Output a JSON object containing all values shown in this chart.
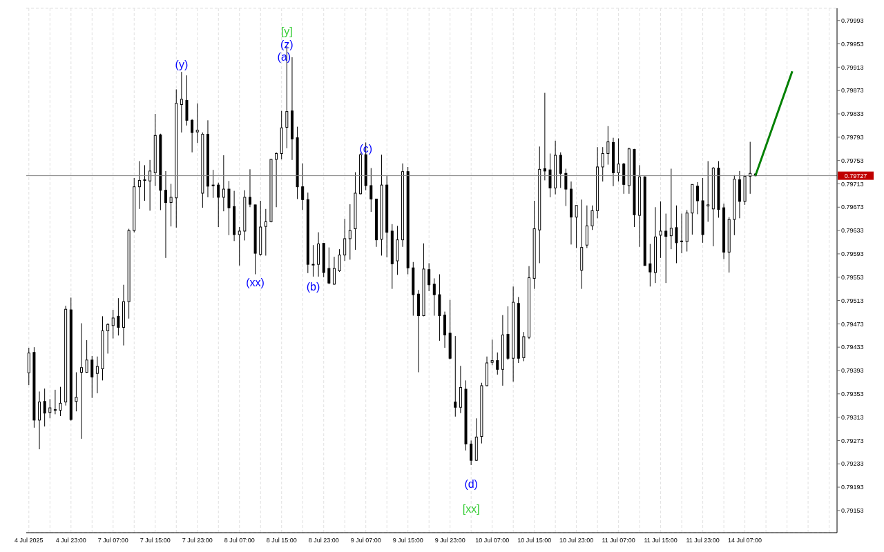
{
  "chart_data": {
    "type": "candlestick",
    "categories": [
      "4 Jul 2025",
      null,
      null,
      null,
      null,
      null,
      null,
      null,
      "4 Jul 23:00",
      null,
      null,
      null,
      null,
      null,
      null,
      null,
      "7 Jul 07:00",
      null,
      null,
      null,
      null,
      null,
      null,
      null,
      "7 Jul 15:00",
      null,
      null,
      null,
      null,
      null,
      null,
      null,
      "7 Jul 23:00",
      null,
      null,
      null,
      null,
      null,
      null,
      null,
      "8 Jul 07:00",
      null,
      null,
      null,
      null,
      null,
      null,
      null,
      "8 Jul 15:00",
      null,
      null,
      null,
      null,
      null,
      null,
      null,
      "8 Jul 23:00",
      null,
      null,
      null,
      null,
      null,
      null,
      null,
      "9 Jul 07:00",
      null,
      null,
      null,
      null,
      null,
      null,
      null,
      "9 Jul 15:00",
      null,
      null,
      null,
      null,
      null,
      null,
      null,
      "9 Jul 23:00",
      null,
      null,
      null,
      null,
      null,
      null,
      null,
      "10 Jul 07:00",
      null,
      null,
      null,
      null,
      null,
      null,
      null,
      "10 Jul 15:00",
      null,
      null,
      null,
      null,
      null,
      null,
      null,
      "10 Jul 23:00",
      null,
      null,
      null,
      null,
      null,
      null,
      null,
      "11 Jul 07:00",
      null,
      null,
      null,
      null,
      null,
      null,
      null,
      "11 Jul 15:00",
      null,
      null,
      null,
      null,
      null,
      null,
      null,
      "11 Jul 23:00",
      null,
      null,
      null,
      null,
      null,
      null,
      null,
      "14 Jul 07:00",
      null,
      null,
      null,
      null,
      null,
      null,
      null,
      null,
      null,
      null,
      null,
      null,
      null,
      null,
      null,
      null,
      null
    ],
    "ohlc": [
      [
        0.79389,
        0.79432,
        0.79368,
        0.79423
      ],
      [
        0.79424,
        0.79433,
        0.79295,
        0.79308
      ],
      [
        0.79308,
        0.79357,
        0.79258,
        0.79339
      ],
      [
        0.7934,
        0.79362,
        0.79297,
        0.7932
      ],
      [
        0.79321,
        0.79344,
        0.79311,
        0.79329
      ],
      [
        0.79326,
        0.7936,
        0.79318,
        0.79325
      ],
      [
        0.79325,
        0.79365,
        0.79315,
        0.79337
      ],
      [
        0.79339,
        0.79504,
        0.79333,
        0.79498
      ],
      [
        0.79497,
        0.79518,
        0.79307,
        0.79309
      ],
      [
        0.7934,
        0.7939,
        0.79323,
        0.79347
      ],
      [
        0.7939,
        0.79474,
        0.79276,
        0.79398
      ],
      [
        0.7939,
        0.79445,
        0.79389,
        0.79411
      ],
      [
        0.79411,
        0.79418,
        0.79346,
        0.79382
      ],
      [
        0.79388,
        0.79417,
        0.79354,
        0.794
      ],
      [
        0.79396,
        0.79486,
        0.79376,
        0.79461
      ],
      [
        0.79461,
        0.79474,
        0.79422,
        0.79472
      ],
      [
        0.7947,
        0.79497,
        0.79448,
        0.79483
      ],
      [
        0.79486,
        0.79517,
        0.79453,
        0.79467
      ],
      [
        0.79467,
        0.7954,
        0.79436,
        0.79511
      ],
      [
        0.79511,
        0.79636,
        0.79482,
        0.79633
      ],
      [
        0.79633,
        0.79723,
        0.7963,
        0.79708
      ],
      [
        0.79708,
        0.79752,
        0.7967,
        0.79719
      ],
      [
        0.79719,
        0.79745,
        0.79684,
        0.7972
      ],
      [
        0.79718,
        0.79754,
        0.79667,
        0.79735
      ],
      [
        0.79732,
        0.79833,
        0.79709,
        0.79796
      ],
      [
        0.79797,
        0.79799,
        0.79668,
        0.79702
      ],
      [
        0.79702,
        0.79735,
        0.79586,
        0.79681
      ],
      [
        0.79681,
        0.79713,
        0.7964,
        0.7969
      ],
      [
        0.79689,
        0.79875,
        0.79638,
        0.79851
      ],
      [
        0.79849,
        0.79905,
        0.79801,
        0.79858
      ],
      [
        0.79856,
        0.79899,
        0.79813,
        0.79822
      ],
      [
        0.79822,
        0.79824,
        0.79767,
        0.79801
      ],
      [
        0.79802,
        0.79851,
        0.79783,
        0.79805
      ],
      [
        0.79697,
        0.79801,
        0.79672,
        0.79798
      ],
      [
        0.79798,
        0.79822,
        0.7969,
        0.79709
      ],
      [
        0.79711,
        0.79737,
        0.79689,
        0.7971
      ],
      [
        0.79711,
        0.79715,
        0.79639,
        0.7969
      ],
      [
        0.7969,
        0.79762,
        0.79666,
        0.79704
      ],
      [
        0.79704,
        0.79718,
        0.79625,
        0.79672
      ],
      [
        0.79674,
        0.79701,
        0.79615,
        0.79626
      ],
      [
        0.79626,
        0.79639,
        0.79573,
        0.79632
      ],
      [
        0.79632,
        0.79702,
        0.79616,
        0.7969
      ],
      [
        0.7969,
        0.79738,
        0.79673,
        0.79678
      ],
      [
        0.79677,
        0.79677,
        0.79558,
        0.79594
      ],
      [
        0.79592,
        0.79684,
        0.7959,
        0.79639
      ],
      [
        0.7964,
        0.7967,
        0.7959,
        0.79648
      ],
      [
        0.79648,
        0.79756,
        0.79647,
        0.79755
      ],
      [
        0.79755,
        0.79767,
        0.79673,
        0.79765
      ],
      [
        0.79765,
        0.79838,
        0.79755,
        0.79809
      ],
      [
        0.7981,
        0.79949,
        0.79774,
        0.79837
      ],
      [
        0.79838,
        0.7993,
        0.79754,
        0.7979
      ],
      [
        0.79792,
        0.79811,
        0.79687,
        0.79708
      ],
      [
        0.79708,
        0.79748,
        0.79668,
        0.79686
      ],
      [
        0.79686,
        0.79698,
        0.7956,
        0.79575
      ],
      [
        0.79574,
        0.79608,
        0.79554,
        0.79575
      ],
      [
        0.79575,
        0.7963,
        0.79554,
        0.7961
      ],
      [
        0.79611,
        0.79611,
        0.79553,
        0.79561
      ],
      [
        0.79568,
        0.79604,
        0.79541,
        0.79543
      ],
      [
        0.79541,
        0.79588,
        0.7954,
        0.79568
      ],
      [
        0.79564,
        0.79601,
        0.79562,
        0.79591
      ],
      [
        0.79591,
        0.79653,
        0.79581,
        0.79619
      ],
      [
        0.79619,
        0.79678,
        0.79583,
        0.79633
      ],
      [
        0.79636,
        0.79733,
        0.796,
        0.79697
      ],
      [
        0.79696,
        0.79766,
        0.79695,
        0.79763
      ],
      [
        0.79763,
        0.79784,
        0.79702,
        0.7971
      ],
      [
        0.7971,
        0.7974,
        0.79665,
        0.79687
      ],
      [
        0.79687,
        0.79687,
        0.79605,
        0.79617
      ],
      [
        0.79618,
        0.79763,
        0.7959,
        0.79711
      ],
      [
        0.79711,
        0.79727,
        0.79587,
        0.7963
      ],
      [
        0.79632,
        0.79644,
        0.79533,
        0.79576
      ],
      [
        0.79581,
        0.79641,
        0.79557,
        0.79617
      ],
      [
        0.79617,
        0.79748,
        0.79605,
        0.79734
      ],
      [
        0.79734,
        0.79742,
        0.79558,
        0.79569
      ],
      [
        0.79569,
        0.79579,
        0.79487,
        0.79523
      ],
      [
        0.79524,
        0.79531,
        0.7939,
        0.79487
      ],
      [
        0.79487,
        0.79611,
        0.79486,
        0.79567
      ],
      [
        0.79566,
        0.79577,
        0.79529,
        0.7954
      ],
      [
        0.79541,
        0.79551,
        0.79487,
        0.79523
      ],
      [
        0.79523,
        0.79558,
        0.79444,
        0.79487
      ],
      [
        0.79488,
        0.79494,
        0.79432,
        0.79454
      ],
      [
        0.79457,
        0.79514,
        0.79412,
        0.79414
      ],
      [
        0.79339,
        0.79452,
        0.79314,
        0.7933
      ],
      [
        0.7933,
        0.79401,
        0.7932,
        0.79364
      ],
      [
        0.79361,
        0.79376,
        0.79256,
        0.79267
      ],
      [
        0.79267,
        0.79273,
        0.79231,
        0.79239
      ],
      [
        0.79239,
        0.79311,
        0.79238,
        0.79279
      ],
      [
        0.7928,
        0.79372,
        0.79268,
        0.79367
      ],
      [
        0.79367,
        0.79417,
        0.79366,
        0.79406
      ],
      [
        0.79407,
        0.79446,
        0.79402,
        0.7941
      ],
      [
        0.7941,
        0.79424,
        0.79386,
        0.79395
      ],
      [
        0.79395,
        0.79488,
        0.79367,
        0.79454
      ],
      [
        0.79455,
        0.79503,
        0.79411,
        0.79414
      ],
      [
        0.79414,
        0.79537,
        0.79374,
        0.7951
      ],
      [
        0.79508,
        0.79519,
        0.79406,
        0.79414
      ],
      [
        0.79415,
        0.79459,
        0.79409,
        0.79451
      ],
      [
        0.7945,
        0.79572,
        0.79447,
        0.79552
      ],
      [
        0.79551,
        0.79684,
        0.79533,
        0.79636
      ],
      [
        0.79634,
        0.79777,
        0.79577,
        0.79738
      ],
      [
        0.79739,
        0.79869,
        0.79719,
        0.79735
      ],
      [
        0.79737,
        0.79765,
        0.7969,
        0.79706
      ],
      [
        0.79706,
        0.79787,
        0.79695,
        0.79762
      ],
      [
        0.79762,
        0.79767,
        0.79706,
        0.79731
      ],
      [
        0.79731,
        0.79739,
        0.79675,
        0.79704
      ],
      [
        0.79704,
        0.79717,
        0.79609,
        0.79656
      ],
      [
        0.79656,
        0.79676,
        0.79603,
        0.79676
      ],
      [
        0.79565,
        0.79686,
        0.79533,
        0.79604
      ],
      [
        0.79608,
        0.79676,
        0.79603,
        0.79641
      ],
      [
        0.79641,
        0.79676,
        0.79634,
        0.79667
      ],
      [
        0.79667,
        0.79776,
        0.79654,
        0.79742
      ],
      [
        0.79742,
        0.79776,
        0.79717,
        0.79765
      ],
      [
        0.79765,
        0.79812,
        0.79746,
        0.79785
      ],
      [
        0.79784,
        0.79792,
        0.79709,
        0.79732
      ],
      [
        0.79732,
        0.79791,
        0.79717,
        0.79747
      ],
      [
        0.79747,
        0.79749,
        0.79696,
        0.79712
      ],
      [
        0.7971,
        0.79775,
        0.79696,
        0.79773
      ],
      [
        0.79772,
        0.79773,
        0.79639,
        0.7966
      ],
      [
        0.79659,
        0.79745,
        0.79605,
        0.79725
      ],
      [
        0.79725,
        0.79726,
        0.79573,
        0.79573
      ],
      [
        0.79576,
        0.7961,
        0.79537,
        0.79562
      ],
      [
        0.79561,
        0.79673,
        0.79543,
        0.79622
      ],
      [
        0.79625,
        0.79683,
        0.79586,
        0.79632
      ],
      [
        0.79632,
        0.79662,
        0.79543,
        0.79623
      ],
      [
        0.79624,
        0.79739,
        0.79601,
        0.79637
      ],
      [
        0.79638,
        0.79676,
        0.79577,
        0.79612
      ],
      [
        0.79614,
        0.79662,
        0.79594,
        0.79615
      ],
      [
        0.79614,
        0.79668,
        0.79597,
        0.79663
      ],
      [
        0.79663,
        0.79712,
        0.79626,
        0.79712
      ],
      [
        0.79709,
        0.79716,
        0.79661,
        0.79684
      ],
      [
        0.79684,
        0.79723,
        0.79612,
        0.79626
      ],
      [
        0.79675,
        0.79752,
        0.79648,
        0.79677
      ],
      [
        0.7967,
        0.79742,
        0.79606,
        0.7974
      ],
      [
        0.7974,
        0.79752,
        0.79655,
        0.79669
      ],
      [
        0.79672,
        0.79679,
        0.79584,
        0.79596
      ],
      [
        0.79596,
        0.79656,
        0.79561,
        0.79652
      ],
      [
        0.79652,
        0.79728,
        0.79625,
        0.79721
      ],
      [
        0.7972,
        0.79735,
        0.79654,
        0.79683
      ],
      [
        0.79683,
        0.79728,
        0.79677,
        0.79726
      ],
      [
        0.79726,
        0.79785,
        0.79696,
        0.79731
      ],
      [
        0.7973,
        0.79731,
        0.79726,
        0.79727
      ],
      null,
      null,
      null,
      null,
      null,
      null,
      null,
      null,
      null,
      null,
      null,
      null,
      null,
      null,
      null
    ],
    "series": [
      {
        "type": "line",
        "color": "#008000",
        "values": [
          null,
          null,
          null,
          null,
          null,
          null,
          null,
          null,
          null,
          null,
          null,
          null,
          null,
          null,
          null,
          null,
          null,
          null,
          null,
          null,
          null,
          null,
          null,
          null,
          null,
          null,
          null,
          null,
          null,
          null,
          null,
          null,
          null,
          null,
          null,
          null,
          null,
          null,
          null,
          null,
          null,
          null,
          null,
          null,
          null,
          null,
          null,
          null,
          null,
          null,
          null,
          null,
          null,
          null,
          null,
          null,
          null,
          null,
          null,
          null,
          null,
          null,
          null,
          null,
          null,
          null,
          null,
          null,
          null,
          null,
          null,
          null,
          null,
          null,
          null,
          null,
          null,
          null,
          null,
          null,
          null,
          null,
          null,
          null,
          null,
          null,
          null,
          null,
          null,
          null,
          null,
          null,
          null,
          null,
          null,
          null,
          null,
          null,
          null,
          null,
          null,
          null,
          null,
          null,
          null,
          null,
          null,
          null,
          null,
          null,
          null,
          null,
          null,
          null,
          null,
          null,
          null,
          null,
          null,
          null,
          null,
          null,
          null,
          null,
          null,
          null,
          null,
          null,
          null,
          null,
          null,
          null,
          null,
          null,
          null,
          null,
          null,
          null,
          0.79727,
          null,
          null,
          null,
          null,
          null,
          null,
          0.79906,
          null,
          null,
          null,
          null,
          null,
          null,
          null,
          null
        ]
      }
    ],
    "ylim": [
      0.79115,
      0.80014
    ],
    "yticks": [
      0.79153,
      0.79193,
      0.79233,
      0.79273,
      0.79313,
      0.79353,
      0.79393,
      0.79433,
      0.79473,
      0.79513,
      0.79553,
      0.79593,
      0.79633,
      0.79673,
      0.79713,
      0.79753,
      0.79793,
      0.79833,
      0.79873,
      0.79913,
      0.79953,
      0.79993
    ],
    "ref_lines": [
      {
        "axis": "y",
        "value": 0.79727,
        "label": "0.79727",
        "color": "#808080"
      }
    ],
    "annotations": [
      "(y)",
      "[y]",
      "(z)",
      "(a)",
      "(xx)",
      "(b)",
      "(c)",
      "(d)",
      "[xx]"
    ],
    "grid": true
  }
}
